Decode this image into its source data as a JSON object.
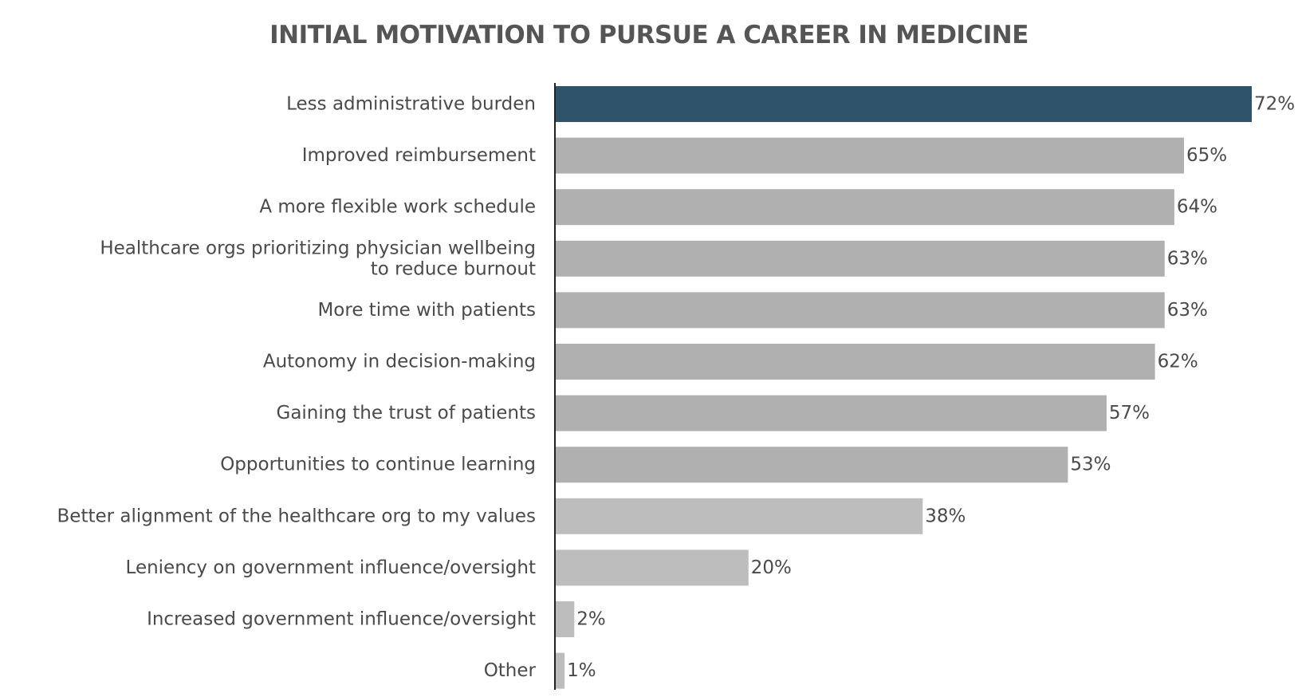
{
  "chart_data": {
    "type": "bar",
    "orientation": "horizontal",
    "title": "INITIAL MOTIVATION TO PURSUE A CAREER IN MEDICINE",
    "xlabel": "",
    "ylabel": "",
    "xlim": [
      0,
      72
    ],
    "grid": false,
    "categories": [
      "Less administrative burden",
      "Improved reimbursement",
      "A more flexible work schedule",
      "Healthcare orgs prioritizing physician wellbeing to reduce burnout",
      "More time with patients",
      "Autonomy in decision-making",
      "Gaining the trust of patients",
      "Opportunities to continue learning",
      "Better alignment of the healthcare org to my values",
      "Leniency on government influence/oversight",
      "Increased government influence/oversight",
      "Other"
    ],
    "label_lines": [
      [
        "Less administrative burden"
      ],
      [
        "Improved reimbursement"
      ],
      [
        "A more flexible work schedule"
      ],
      [
        "Healthcare orgs prioritizing physician wellbeing",
        "to reduce burnout"
      ],
      [
        "More time with patients"
      ],
      [
        "Autonomy in decision-making"
      ],
      [
        "Gaining the trust of patients"
      ],
      [
        "Opportunities to continue learning"
      ],
      [
        "Better alignment of the healthcare org to my values"
      ],
      [
        "Leniency on government influence/oversight"
      ],
      [
        "Increased government influence/oversight"
      ],
      [
        "Other"
      ]
    ],
    "values": [
      72,
      65,
      64,
      63,
      63,
      62,
      57,
      53,
      38,
      20,
      2,
      1
    ],
    "value_labels": [
      "72%",
      "65%",
      "64%",
      "63%",
      "63%",
      "62%",
      "57%",
      "53%",
      "38%",
      "20%",
      "2%",
      "1%"
    ],
    "colors": {
      "highlight": "#2f536b",
      "primary": "#b0b0b0",
      "secondary": "#bdbdbd",
      "axis": "#222222",
      "text": "#4a4a4a"
    },
    "bar_color_keys": [
      "highlight",
      "primary",
      "primary",
      "primary",
      "primary",
      "primary",
      "primary",
      "primary",
      "secondary",
      "secondary",
      "secondary",
      "secondary"
    ]
  }
}
